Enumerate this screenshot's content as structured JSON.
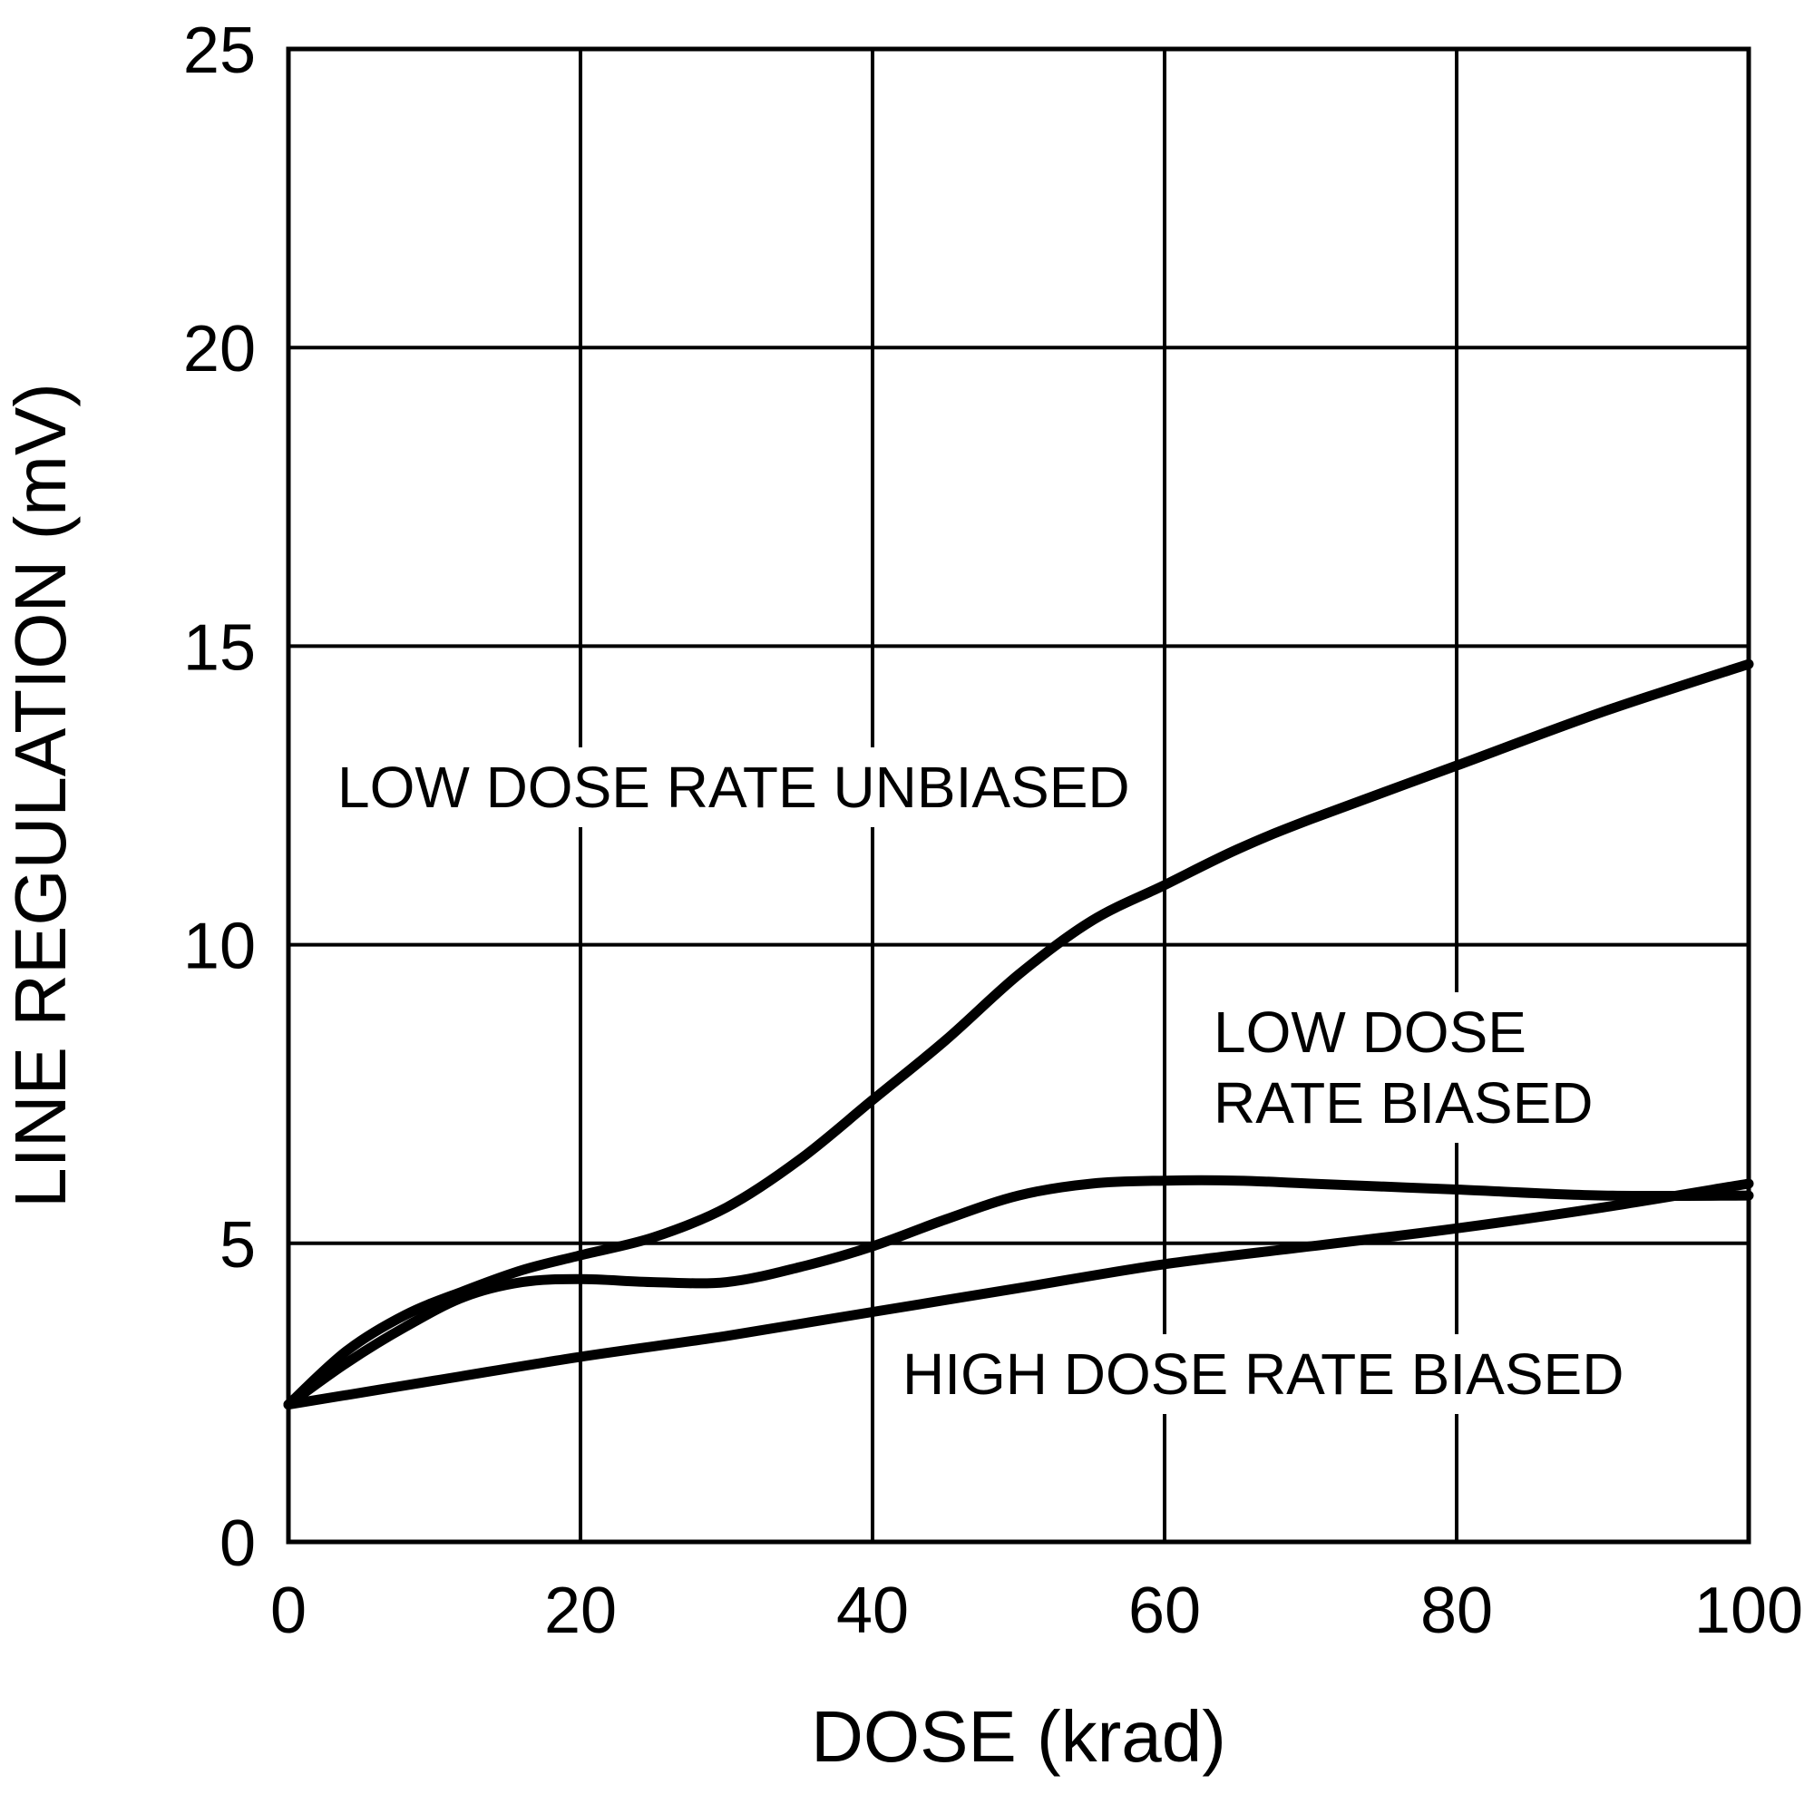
{
  "chart_data": {
    "type": "line",
    "title": "",
    "xlabel": "DOSE (krad)",
    "ylabel": "LINE REGULATION (mV)",
    "xlim": [
      0,
      100
    ],
    "ylim": [
      0,
      25
    ],
    "xticks": [
      0,
      20,
      40,
      60,
      80,
      100
    ],
    "yticks": [
      0,
      5,
      10,
      15,
      20,
      25
    ],
    "x_tick_labels": [
      "0",
      "20",
      "40",
      "60",
      "80",
      "100"
    ],
    "y_tick_labels": [
      "0",
      "5",
      "10",
      "15",
      "20",
      "25"
    ],
    "grid": true,
    "series": [
      {
        "name": "LOW DOSE RATE UNBIASED",
        "label_lines": [
          "LOW DOSE RATE UNBIASED"
        ],
        "x": [
          0,
          4,
          8,
          12,
          16,
          20,
          25,
          30,
          35,
          40,
          45,
          50,
          55,
          60,
          65,
          70,
          80,
          90,
          100
        ],
        "y": [
          2.3,
          3.2,
          3.8,
          4.2,
          4.55,
          4.8,
          5.1,
          5.6,
          6.4,
          7.4,
          8.4,
          9.5,
          10.4,
          11.0,
          11.6,
          12.1,
          13.0,
          13.9,
          14.7
        ]
      },
      {
        "name": "LOW DOSE RATE BIASED",
        "label_lines": [
          "LOW DOSE",
          "RATE BIASED"
        ],
        "x": [
          0,
          4,
          8,
          12,
          16,
          20,
          25,
          30,
          35,
          40,
          45,
          50,
          55,
          60,
          65,
          70,
          80,
          90,
          100
        ],
        "y": [
          2.3,
          3.0,
          3.6,
          4.1,
          4.35,
          4.4,
          4.35,
          4.35,
          4.6,
          4.95,
          5.4,
          5.8,
          6.0,
          6.05,
          6.05,
          6.0,
          5.9,
          5.8,
          5.8
        ]
      },
      {
        "name": "HIGH DOSE RATE BIASED",
        "label_lines": [
          "HIGH DOSE RATE BIASED"
        ],
        "x": [
          0,
          10,
          20,
          30,
          40,
          50,
          60,
          70,
          80,
          90,
          100
        ],
        "y": [
          2.3,
          2.7,
          3.1,
          3.45,
          3.85,
          4.25,
          4.65,
          4.95,
          5.25,
          5.6,
          6.0
        ]
      }
    ]
  }
}
